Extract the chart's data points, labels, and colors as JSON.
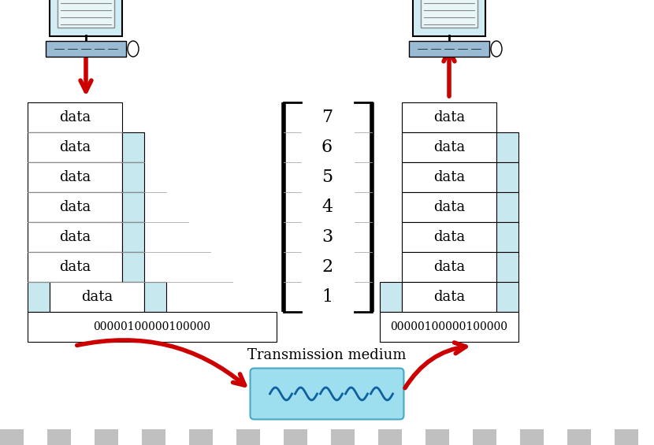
{
  "background_color": "#ffffff",
  "title": "Transmission medium",
  "layers": 7,
  "layer_labels": [
    "7",
    "6",
    "5",
    "4",
    "3",
    "2",
    "1"
  ],
  "data_label": "data",
  "binary_string": "00000100000100000",
  "stack_color": "#ffffff",
  "header_color": "#c8e8f0",
  "border_color": "#000000",
  "border_light": "#aaaaaa",
  "arrow_color": "#cc0000",
  "medium_fill": "#7dd4ea",
  "medium_border": "#2090b0",
  "wave_color": "#1060a0",
  "checker_color": "#c0c0c0"
}
